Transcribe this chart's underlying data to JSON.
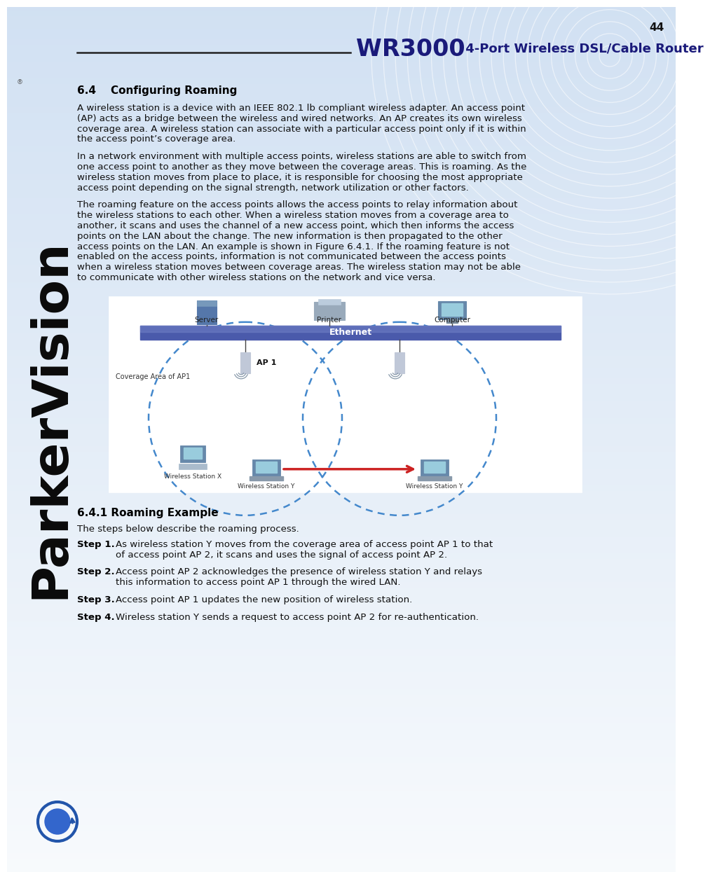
{
  "page_number": "44",
  "title_wr": "WR3000",
  "title_sub": " 4-Port Wireless DSL/Cable Router",
  "section_heading": "6.4    Configuring Roaming",
  "para1": "A wireless station is a device with an IEEE 802.1 lb compliant wireless adapter. An access point\n(AP) acts as a bridge between the wireless and wired networks. An AP creates its own wireless\ncoverage area. A wireless station can associate with a particular access point only if it is within\nthe access point’s coverage area.",
  "para2": "In a network environment with multiple access points, wireless stations are able to switch from\none access point to another as they move between the coverage areas. This is roaming. As the\nwireless station moves from place to place, it is responsible for choosing the most appropriate\naccess point depending on the signal strength, network utilization or other factors.",
  "para3": "The roaming feature on the access points allows the access points to relay information about\nthe wireless stations to each other. When a wireless station moves from a coverage area to\nanother, it scans and uses the channel of a new access point, which then informs the access\npoints on the LAN about the change. The new information is then propagated to the other\naccess points on the LAN. An example is shown in Figure 6.4.1. If the roaming feature is not\nenabled on the access points, information is not communicated between the access points\nwhen a wireless station moves between coverage areas. The wireless station may not be able\nto communicate with other wireless stations on the network and vice versa.",
  "section2_heading": "6.4.1 Roaming Example",
  "section2_intro": "The steps below describe the roaming process.",
  "step1_label": "Step 1.",
  "step1_text": "As wireless station Y moves from the coverage area of access point AP 1 to that\nof access point AP 2, it scans and uses the signal of access point AP 2.",
  "step2_label": "Step 2.",
  "step2_text": "Access point AP 2 acknowledges the presence of wireless station Y and relays\nthis information to access point AP 1 through the wired LAN.",
  "step3_label": "Step 3.",
  "step3_text": "Access point AP 1 updates the new position of wireless station.",
  "step4_label": "Step 4.",
  "step4_text": "Wireless station Y sends a request to access point AP 2 for re-authentication.",
  "bg_light": "#d8e8f4",
  "bg_white": "#f0f6fb",
  "sidebar_text_color": "#111111",
  "title_color": "#1a1a7a",
  "text_color": "#111111",
  "eth_color": "#4a5aab",
  "circle_color": "#4488cc",
  "arrow_color": "#cc2222"
}
